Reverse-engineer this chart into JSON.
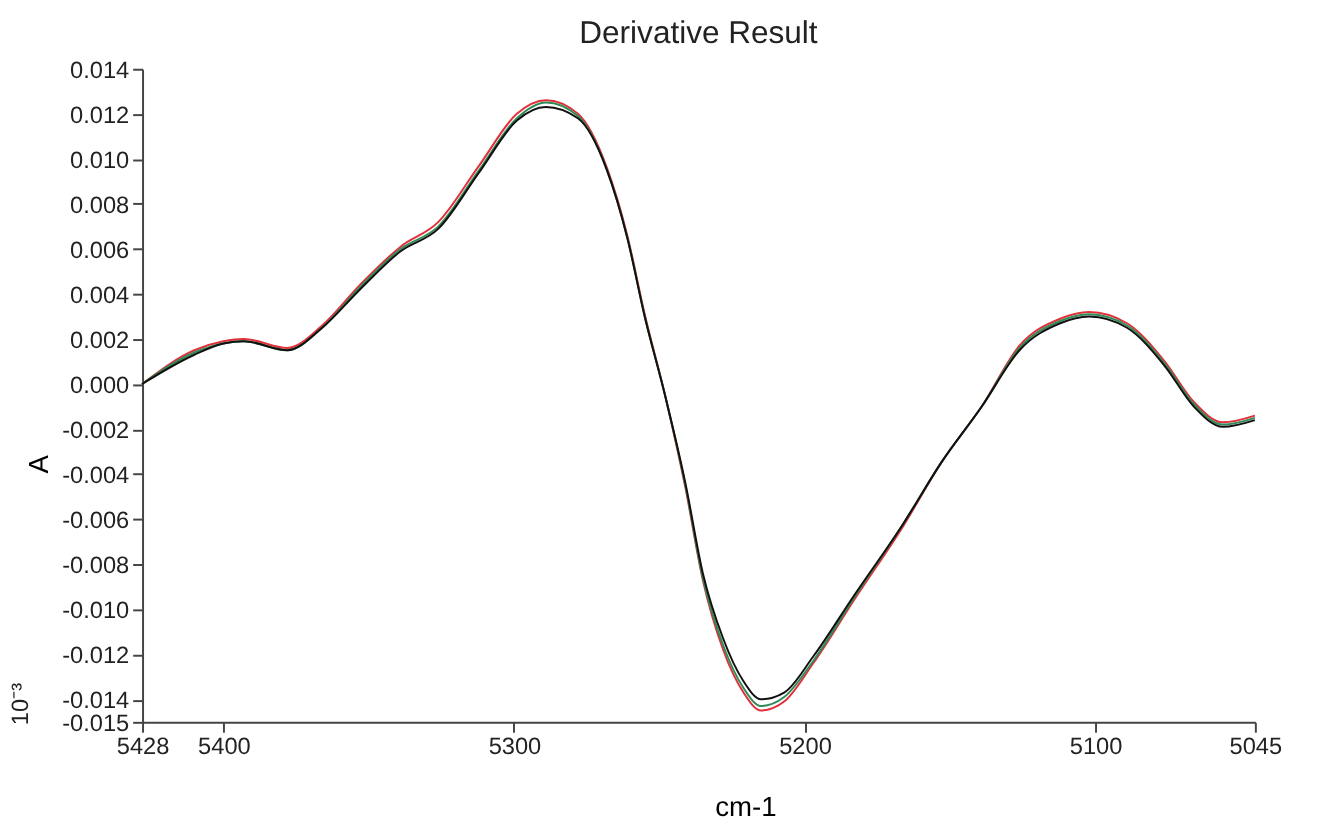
{
  "chart_data": {
    "type": "line",
    "title": "Derivative Result",
    "xlabel": "cm-1",
    "ylabel": "A",
    "annotations": [
      "10⁻³"
    ],
    "x": [
      5428,
      5410,
      5400,
      5393,
      5378,
      5366,
      5353,
      5339,
      5326,
      5312,
      5299,
      5289,
      5278,
      5268,
      5261,
      5255,
      5248,
      5241,
      5235,
      5228,
      5221,
      5215,
      5207,
      5197,
      5183,
      5166,
      5153,
      5139,
      5126,
      5112,
      5102,
      5089,
      5076,
      5066,
      5056,
      5045
    ],
    "series": [
      {
        "color": "#e0303a",
        "values": [
          0.0,
          0.0015,
          0.0019,
          0.002,
          0.0016,
          0.0026,
          0.0044,
          0.0061,
          0.0072,
          0.0097,
          0.012,
          0.0126,
          0.012,
          0.0096,
          0.0066,
          0.0031,
          -0.0005,
          -0.0046,
          -0.0087,
          -0.0118,
          -0.0137,
          -0.0145,
          -0.0141,
          -0.0124,
          -0.0096,
          -0.0063,
          -0.0035,
          -0.001,
          0.0017,
          0.0029,
          0.0032,
          0.0027,
          0.001,
          -0.0008,
          -0.0017,
          -0.0014
        ]
      },
      {
        "color": "#2e8b57",
        "values": [
          0.0,
          0.0014,
          0.0018,
          0.0019,
          0.0015,
          0.0025,
          0.0043,
          0.006,
          0.007,
          0.0095,
          0.0118,
          0.0125,
          0.0119,
          0.0095,
          0.0065,
          0.003,
          -0.0005,
          -0.0045,
          -0.0086,
          -0.0116,
          -0.0135,
          -0.0143,
          -0.0139,
          -0.0123,
          -0.0095,
          -0.0062,
          -0.0035,
          -0.001,
          0.0016,
          0.0028,
          0.0031,
          0.0026,
          0.0009,
          -0.0009,
          -0.0018,
          -0.0015
        ]
      },
      {
        "color": "#111111",
        "values": [
          0.0,
          0.0013,
          0.0018,
          0.0019,
          0.0015,
          0.0025,
          0.0042,
          0.0059,
          0.0069,
          0.0094,
          0.0117,
          0.0123,
          0.0118,
          0.0095,
          0.0065,
          0.003,
          -0.0005,
          -0.0044,
          -0.0084,
          -0.0113,
          -0.0132,
          -0.014,
          -0.0137,
          -0.0121,
          -0.0094,
          -0.0062,
          -0.0035,
          -0.001,
          0.0015,
          0.0027,
          0.003,
          0.0025,
          0.0008,
          -0.001,
          -0.0019,
          -0.0016
        ]
      }
    ],
    "xlim": [
      5428,
      5045
    ],
    "xticks": [
      5428,
      5400,
      5300,
      5200,
      5100,
      5045
    ],
    "ylim": [
      -0.015,
      0.014
    ],
    "yticks": [
      {
        "value": -0.015,
        "label": "-0.015"
      },
      {
        "value": -0.014,
        "label": "-0.014"
      },
      {
        "value": -0.012,
        "label": "-0.012"
      },
      {
        "value": -0.01,
        "label": "-0.010"
      },
      {
        "value": -0.008,
        "label": "-0.008"
      },
      {
        "value": -0.006,
        "label": "-0.006"
      },
      {
        "value": -0.004,
        "label": "-0.004"
      },
      {
        "value": -0.002,
        "label": "-0.002"
      },
      {
        "value": 0,
        "label": "0.000"
      },
      {
        "value": 0.002,
        "label": "0.002"
      },
      {
        "value": 0.004,
        "label": "0.004"
      },
      {
        "value": 0.006,
        "label": "0.006"
      },
      {
        "value": 0.008,
        "label": "0.008"
      },
      {
        "value": 0.01,
        "label": "0.010"
      },
      {
        "value": 0.012,
        "label": "0.012"
      },
      {
        "value": 0.014,
        "label": "0.014"
      }
    ],
    "grid": false,
    "legend": false,
    "line_style": "solid"
  }
}
